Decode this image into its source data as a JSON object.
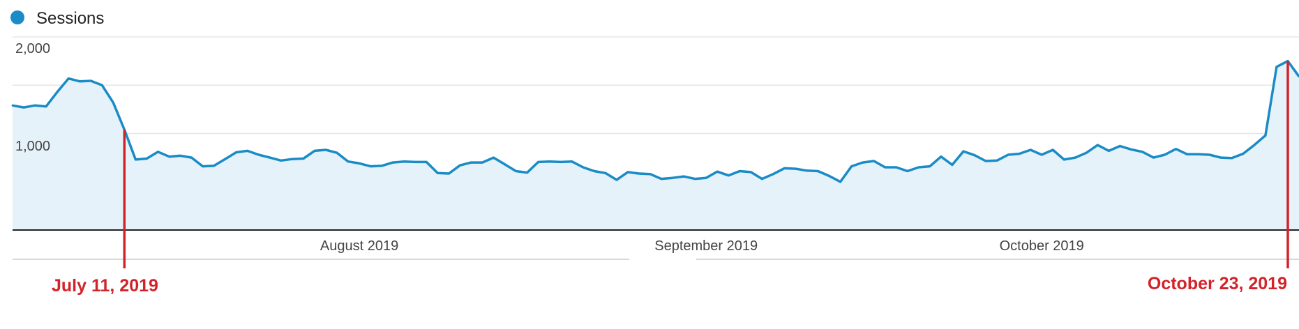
{
  "colors": {
    "series": "#1a8bc6",
    "fill": "#e6f2f9",
    "grid": "#e6e6e6",
    "axis": "#222222",
    "annotation": "#d2232a"
  },
  "chart_data": {
    "type": "area",
    "x_type": "date",
    "ylim": [
      0,
      2000
    ],
    "y_ticks": [
      "2,000",
      "1,000"
    ],
    "x_tick_labels": [
      {
        "label": "August 2019",
        "date": "2019-08-01"
      },
      {
        "label": "September 2019",
        "date": "2019-09-01"
      },
      {
        "label": "October 2019",
        "date": "2019-10-01"
      }
    ],
    "grid": true,
    "legend": {
      "position": "top-left"
    },
    "series": [
      {
        "name": "Sessions",
        "x_start": "2019-07-01",
        "x_step_days": 1,
        "values": [
          1290,
          1270,
          1290,
          1280,
          1430,
          1570,
          1540,
          1545,
          1500,
          1320,
          1040,
          730,
          740,
          810,
          760,
          770,
          750,
          660,
          665,
          735,
          805,
          820,
          780,
          750,
          720,
          735,
          740,
          820,
          830,
          800,
          710,
          690,
          660,
          665,
          700,
          710,
          705,
          705,
          590,
          585,
          670,
          700,
          700,
          750,
          680,
          610,
          595,
          705,
          710,
          705,
          710,
          650,
          610,
          590,
          520,
          600,
          585,
          580,
          530,
          540,
          555,
          530,
          540,
          605,
          565,
          610,
          600,
          530,
          580,
          640,
          635,
          615,
          610,
          560,
          500,
          660,
          700,
          715,
          650,
          650,
          610,
          650,
          660,
          760,
          675,
          815,
          775,
          715,
          720,
          780,
          790,
          830,
          780,
          830,
          730,
          750,
          800,
          880,
          820,
          870,
          835,
          810,
          750,
          780,
          840,
          785,
          785,
          780,
          750,
          745,
          790,
          880,
          980,
          1690,
          1750,
          1590
        ]
      }
    ],
    "annotations": [
      {
        "label": "July 11, 2019",
        "date": "2019-07-11"
      },
      {
        "label": "October 23, 2019",
        "date": "2019-10-23"
      }
    ]
  }
}
